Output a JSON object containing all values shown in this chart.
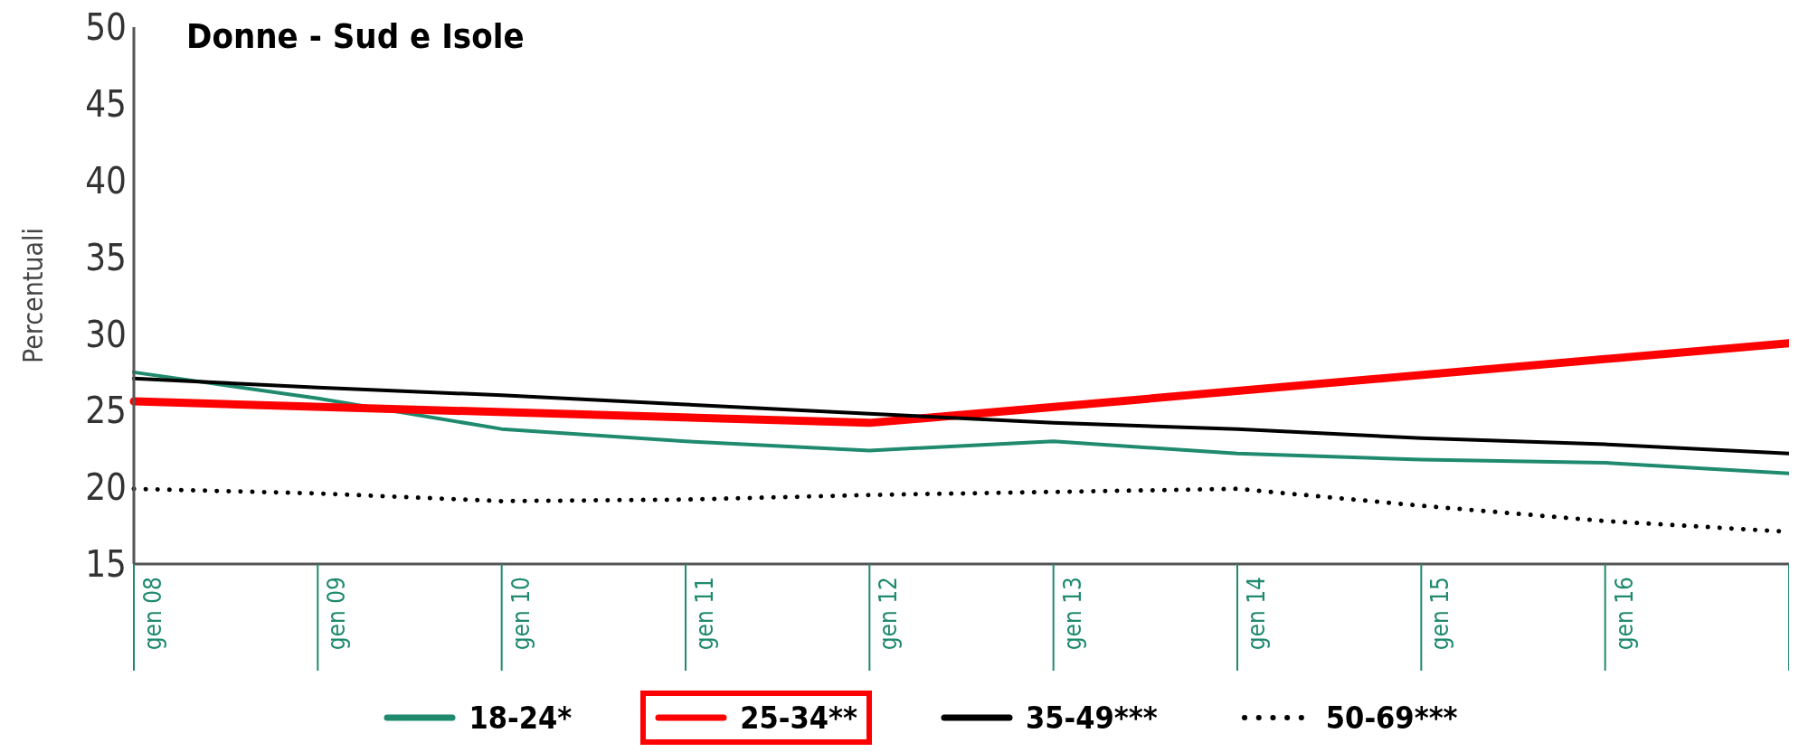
{
  "chart_data": {
    "type": "line",
    "title": "Donne - Sud e Isole",
    "ylabel": "Percentuali",
    "categories": [
      "gen 08",
      "gen 09",
      "gen 10",
      "gen 11",
      "gen 12",
      "gen 13",
      "gen 14",
      "gen 15",
      "gen 16",
      null
    ],
    "ylim": [
      15,
      50
    ],
    "yticks": [
      15,
      20,
      25,
      30,
      35,
      40,
      45,
      50
    ],
    "legend": "bottom",
    "series": [
      {
        "name": "18-24*",
        "color": "#1f8a6e",
        "line_style": "solid",
        "values": [
          27.5,
          25.8,
          23.8,
          23.0,
          22.4,
          23.0,
          22.2,
          21.8,
          21.6,
          20.9
        ]
      },
      {
        "name": "25-34**",
        "color": "#ff0000",
        "line_style": "solid",
        "values": [
          25.6,
          null,
          null,
          null,
          24.2,
          null,
          null,
          null,
          null,
          29.4
        ]
      },
      {
        "name": "35-49***",
        "color": "#000000",
        "line_style": "solid",
        "values": [
          27.1,
          26.5,
          26.0,
          25.4,
          24.8,
          24.2,
          23.8,
          23.2,
          22.8,
          22.2
        ]
      },
      {
        "name": "50-69***",
        "color": "#000000",
        "line_style": "dotted",
        "values": [
          19.9,
          19.6,
          19.1,
          19.2,
          19.5,
          19.7,
          19.9,
          18.8,
          17.8,
          17.1
        ]
      }
    ]
  }
}
